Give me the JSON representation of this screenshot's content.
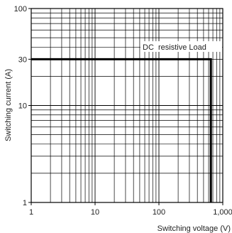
{
  "chart_data": {
    "type": "line",
    "x_scale": "log",
    "y_scale": "log",
    "xlim": [
      1,
      1000
    ],
    "ylim": [
      1,
      100
    ],
    "grid": true,
    "xlabel": "Switching voltage (V)",
    "ylabel": "Switching current (A)",
    "x_ticks": [
      {
        "value": 1,
        "label": "1"
      },
      {
        "value": 10,
        "label": "10"
      },
      {
        "value": 100,
        "label": "100"
      },
      {
        "value": 1000,
        "label": "1,000"
      }
    ],
    "y_ticks": [
      {
        "value": 1,
        "label": "1"
      },
      {
        "value": 10,
        "label": "10"
      },
      {
        "value": 30,
        "label": "30"
      },
      {
        "value": 100,
        "label": "100"
      }
    ],
    "series": [
      {
        "name": "DC resistive Load",
        "x": [
          1,
          650,
          650
        ],
        "y": [
          30,
          30,
          1
        ]
      }
    ],
    "annotation": "DC  resistive Load"
  }
}
